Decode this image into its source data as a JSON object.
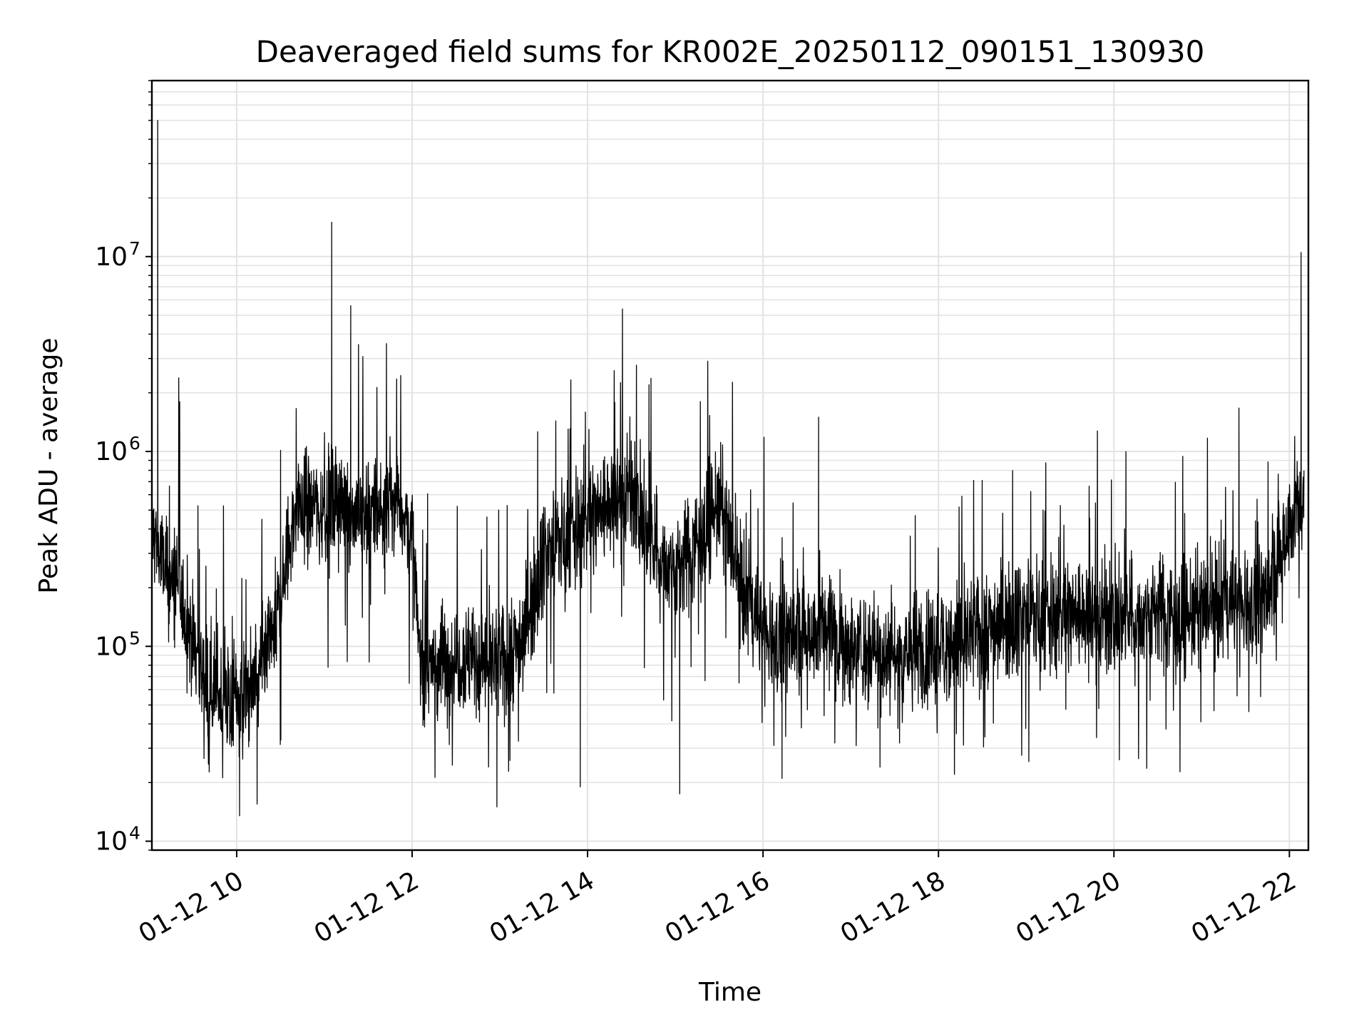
{
  "chart_data": {
    "type": "line",
    "title": "Deaveraged field sums for KR002E_20250112_090151_130930",
    "xlabel": "Time",
    "ylabel": "Peak ADU - average",
    "yscale": "log",
    "ylim": [
      9000,
      80000000
    ],
    "xlim": [
      "2025-01-12 09:02",
      "2025-01-12 22:13"
    ],
    "grid": true,
    "line_color": "#000000",
    "x_ticks": [
      {
        "x": "2025-01-12 10:00",
        "label": "01-12 10"
      },
      {
        "x": "2025-01-12 12:00",
        "label": "01-12 12"
      },
      {
        "x": "2025-01-12 14:00",
        "label": "01-12 14"
      },
      {
        "x": "2025-01-12 16:00",
        "label": "01-12 16"
      },
      {
        "x": "2025-01-12 18:00",
        "label": "01-12 18"
      },
      {
        "x": "2025-01-12 20:00",
        "label": "01-12 20"
      },
      {
        "x": "2025-01-12 22:00",
        "label": "01-12 22"
      }
    ],
    "y_ticks": [
      {
        "y": 10000,
        "base": "10",
        "exp": "4"
      },
      {
        "y": 100000,
        "base": "10",
        "exp": "5"
      },
      {
        "y": 1000000,
        "base": "10",
        "exp": "6"
      },
      {
        "y": 10000000,
        "base": "10",
        "exp": "7"
      }
    ],
    "series": [
      {
        "x": [
          "2025-01-12 09:02",
          "2025-01-12 09:05",
          "2025-01-12 09:10",
          "2025-01-12 09:15",
          "2025-01-12 09:20",
          "2025-01-12 09:25",
          "2025-01-12 09:30",
          "2025-01-12 09:35",
          "2025-01-12 09:40",
          "2025-01-12 09:45",
          "2025-01-12 09:50",
          "2025-01-12 09:55",
          "2025-01-12 10:00",
          "2025-01-12 10:10",
          "2025-01-12 10:20",
          "2025-01-12 10:30",
          "2025-01-12 10:40",
          "2025-01-12 10:50",
          "2025-01-12 11:00",
          "2025-01-12 11:10",
          "2025-01-12 11:20",
          "2025-01-12 11:30",
          "2025-01-12 11:40",
          "2025-01-12 11:50",
          "2025-01-12 12:00",
          "2025-01-12 12:05",
          "2025-01-12 12:15",
          "2025-01-12 12:30",
          "2025-01-12 12:45",
          "2025-01-12 13:00",
          "2025-01-12 13:15",
          "2025-01-12 13:30",
          "2025-01-12 13:40",
          "2025-01-12 13:50",
          "2025-01-12 14:00",
          "2025-01-12 14:15",
          "2025-01-12 14:30",
          "2025-01-12 14:45",
          "2025-01-12 15:00",
          "2025-01-12 15:15",
          "2025-01-12 15:30",
          "2025-01-12 15:45",
          "2025-01-12 16:00",
          "2025-01-12 16:15",
          "2025-01-12 16:30",
          "2025-01-12 16:45",
          "2025-01-12 17:00",
          "2025-01-12 17:15",
          "2025-01-12 17:30",
          "2025-01-12 17:45",
          "2025-01-12 18:00",
          "2025-01-12 18:15",
          "2025-01-12 18:30",
          "2025-01-12 18:45",
          "2025-01-12 19:00",
          "2025-01-12 19:15",
          "2025-01-12 19:30",
          "2025-01-12 19:45",
          "2025-01-12 20:00",
          "2025-01-12 20:15",
          "2025-01-12 20:30",
          "2025-01-12 20:45",
          "2025-01-12 21:00",
          "2025-01-12 21:15",
          "2025-01-12 21:30",
          "2025-01-12 21:45",
          "2025-01-12 22:00",
          "2025-01-12 22:10"
        ],
        "y": [
          400000,
          350000,
          250000,
          220000,
          180000,
          150000,
          110000,
          80000,
          65000,
          60000,
          55000,
          50000,
          55000,
          60000,
          80000,
          180000,
          500000,
          550000,
          500000,
          550000,
          500000,
          480000,
          500000,
          600000,
          350000,
          90000,
          80000,
          90000,
          85000,
          80000,
          110000,
          300000,
          350000,
          380000,
          450000,
          550000,
          650000,
          300000,
          250000,
          350000,
          550000,
          200000,
          120000,
          110000,
          120000,
          130000,
          95000,
          100000,
          90000,
          95000,
          100000,
          105000,
          120000,
          140000,
          150000,
          140000,
          150000,
          145000,
          140000,
          135000,
          160000,
          140000,
          150000,
          165000,
          170000,
          180000,
          450000,
          550000
        ],
        "spikes": [
          {
            "x": "2025-01-12 09:06",
            "y": 50000000
          },
          {
            "x": "2025-01-12 09:21",
            "y": 1800000
          },
          {
            "x": "2025-01-12 11:05",
            "y": 15000000
          },
          {
            "x": "2025-01-12 11:18",
            "y": 5600000
          },
          {
            "x": "2025-01-12 14:42",
            "y": 2200000
          },
          {
            "x": "2025-01-12 16:38",
            "y": 1500000
          },
          {
            "x": "2025-01-12 22:08",
            "y": 10500000
          }
        ],
        "dips": [
          {
            "x": "2025-01-12 10:02",
            "y": 13500
          },
          {
            "x": "2025-01-12 10:14",
            "y": 15500
          },
          {
            "x": "2025-01-12 12:58",
            "y": 15000
          },
          {
            "x": "2025-01-12 13:55",
            "y": 19000
          },
          {
            "x": "2025-01-12 15:03",
            "y": 17500
          },
          {
            "x": "2025-01-12 16:13",
            "y": 21000
          },
          {
            "x": "2025-01-12 17:20",
            "y": 24000
          }
        ]
      }
    ]
  }
}
